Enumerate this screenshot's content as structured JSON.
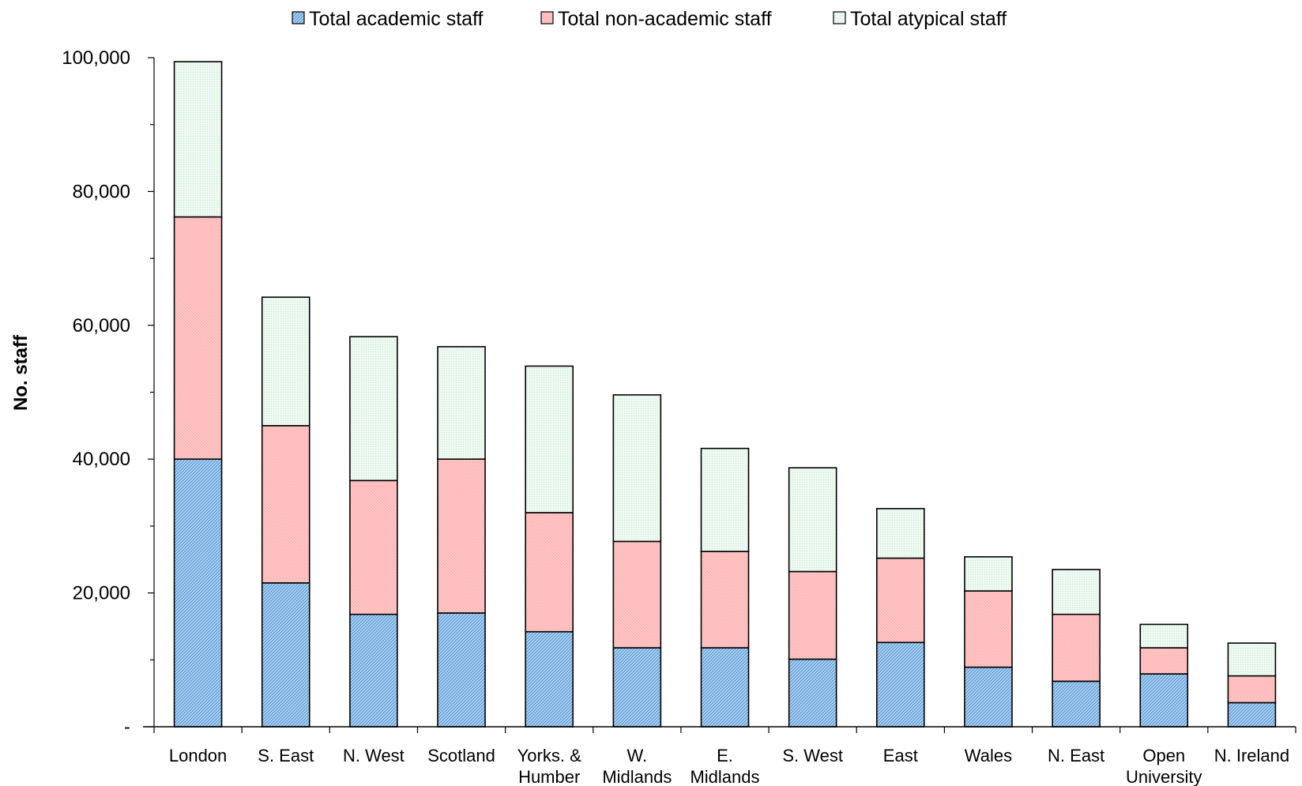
{
  "chart_data": {
    "type": "bar",
    "stacked": true,
    "title": "",
    "xlabel": "",
    "ylabel": "No. staff",
    "ylim": [
      0,
      100000
    ],
    "yticks": [
      0,
      20000,
      40000,
      60000,
      80000,
      100000
    ],
    "ytick_labels": [
      "-",
      "20,000",
      "40,000",
      "60,000",
      "80,000",
      "100,000"
    ],
    "categories": [
      "London",
      "S. East",
      "N. West",
      "Scotland",
      "Yorks. & Humber",
      "W. Midlands",
      "E. Midlands",
      "S. West",
      "East",
      "Wales",
      "N. East",
      "Open University",
      "N. Ireland"
    ],
    "category_lines": [
      [
        "London"
      ],
      [
        "S. East"
      ],
      [
        "N. West"
      ],
      [
        "Scotland"
      ],
      [
        "Yorks. &",
        "Humber"
      ],
      [
        "W.",
        "Midlands"
      ],
      [
        "E.",
        "Midlands"
      ],
      [
        "S. West"
      ],
      [
        "East"
      ],
      [
        "Wales"
      ],
      [
        "N. East"
      ],
      [
        "Open",
        "University"
      ],
      [
        "N. Ireland"
      ]
    ],
    "series": [
      {
        "name": "Total academic staff",
        "values": [
          40000,
          21500,
          16800,
          17000,
          14200,
          11800,
          11800,
          10100,
          12600,
          8900,
          6800,
          7900,
          3600
        ]
      },
      {
        "name": "Total non-academic staff",
        "values": [
          36200,
          23500,
          20000,
          23000,
          17800,
          15900,
          14400,
          13100,
          12600,
          11400,
          10000,
          3900,
          4000
        ]
      },
      {
        "name": "Total atypical staff",
        "values": [
          23200,
          19200,
          21500,
          16800,
          21900,
          21900,
          15400,
          15500,
          7400,
          5100,
          6700,
          3500,
          4900
        ]
      }
    ],
    "legend_position": "top",
    "grid": false,
    "colors": {
      "academic": "#a9cff0",
      "academic_pattern": "#4f8fcf",
      "non_academic": "#ffc4c4",
      "non_academic_pattern": "#f09a9a",
      "atypical": "#eef9f1",
      "atypical_pattern": "#b9e6c6",
      "outline": "#000000"
    }
  }
}
